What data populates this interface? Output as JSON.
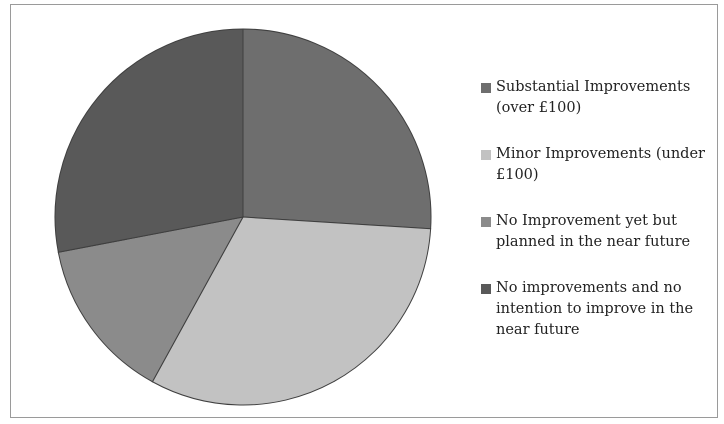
{
  "chart_data": {
    "type": "pie",
    "title": "",
    "start_angle_deg": 90,
    "direction": "clockwise",
    "slices": [
      {
        "label": "Substantial Improvements (over £100)",
        "value": 26,
        "color": "#6e6e6e"
      },
      {
        "label": "Minor Improvements (under £100)",
        "value": 32,
        "color": "#c2c2c2"
      },
      {
        "label": "No Improvement yet but planned in the near future",
        "value": 14,
        "color": "#8b8b8b"
      },
      {
        "label": "No improvements and no intention to improve in the near future",
        "value": 28,
        "color": "#595959"
      }
    ],
    "legend_position": "right"
  }
}
